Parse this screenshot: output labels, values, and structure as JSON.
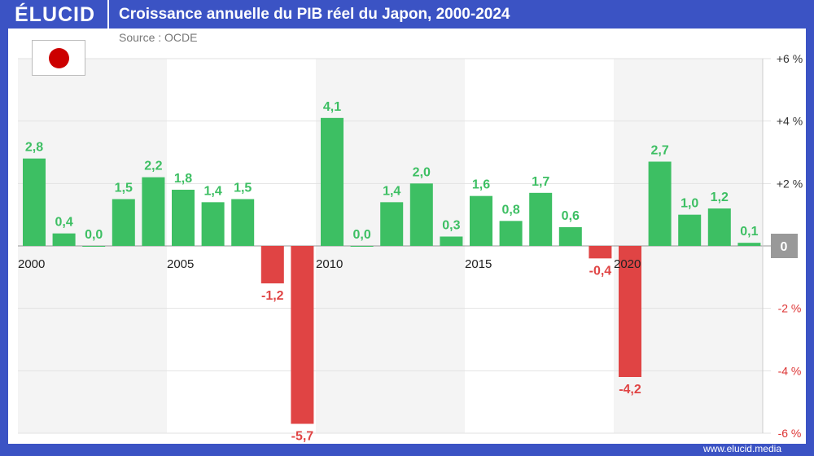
{
  "header": {
    "logo": "ÉLUCID",
    "title": "Croissance annuelle du PIB réel du Japon, 2000-2024"
  },
  "source": "Source : OCDE",
  "flag_icon": "japan-flag",
  "footer": "www.elucid.media",
  "colors": {
    "positive": "#3dbf63",
    "negative": "#e04444",
    "brand": "#3b53c4"
  },
  "chart_data": {
    "type": "bar",
    "categories": [
      "2000",
      "2001",
      "2002",
      "2003",
      "2004",
      "2005",
      "2006",
      "2007",
      "2008",
      "2009",
      "2010",
      "2011",
      "2012",
      "2013",
      "2014",
      "2015",
      "2016",
      "2017",
      "2018",
      "2019",
      "2020",
      "2021",
      "2022",
      "2023",
      "2024"
    ],
    "values": [
      2.8,
      0.4,
      0.0,
      1.5,
      2.2,
      1.8,
      1.4,
      1.5,
      -1.2,
      -5.7,
      4.1,
      0.0,
      1.4,
      2.0,
      0.3,
      1.6,
      0.8,
      1.7,
      0.6,
      -0.4,
      -4.2,
      2.7,
      1.0,
      1.2,
      0.1
    ],
    "data_labels": [
      "2,8",
      "0,4",
      "0,0",
      "1,5",
      "2,2",
      "1,8",
      "1,4",
      "1,5",
      "-1,2",
      "-5,7",
      "4,1",
      "0,0",
      "1,4",
      "2,0",
      "0,3",
      "1,6",
      "0,8",
      "1,7",
      "0,6",
      "-0,4",
      "-4,2",
      "2,7",
      "1,0",
      "1,2",
      "0,1"
    ],
    "x_tick_labels": [
      "2000",
      "2005",
      "2010",
      "2015",
      "2020"
    ],
    "y_ticks": [
      6,
      4,
      2,
      0,
      -2,
      -4,
      -6
    ],
    "y_tick_labels": [
      "+6 %",
      "+4 %",
      "+2 %",
      "0",
      "-2 %",
      "-4 %",
      "-6 %"
    ],
    "ylim": [
      -6,
      6
    ],
    "grid": true,
    "y_axis_position": "right"
  }
}
